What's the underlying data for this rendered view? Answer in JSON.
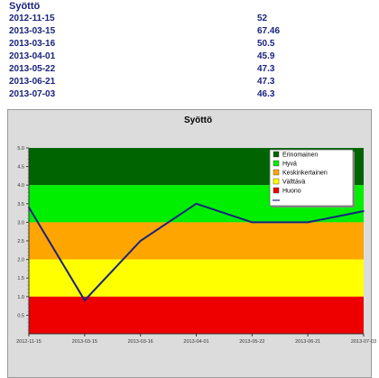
{
  "table": {
    "title": "Syöttö",
    "rows": [
      {
        "date": "2012-11-15",
        "value": "52"
      },
      {
        "date": "2013-03-15",
        "value": "67.46"
      },
      {
        "date": "2013-03-16",
        "value": "50.5"
      },
      {
        "date": "2013-04-01",
        "value": "45.9"
      },
      {
        "date": "2013-05-22",
        "value": "47.3"
      },
      {
        "date": "2013-06-21",
        "value": "47.3"
      },
      {
        "date": "2013-07-03",
        "value": "46.3"
      }
    ]
  },
  "chart_data": {
    "type": "line",
    "title": "Syöttö",
    "xlabel": "",
    "ylabel": "",
    "ylim": [
      0,
      5
    ],
    "y_ticks": [
      "0.5",
      "1.0",
      "1.5",
      "2.0",
      "2.5",
      "3.0",
      "3.5",
      "4.0",
      "4.5",
      "5.0"
    ],
    "categories": [
      "2012-11-15",
      "2013-03-15",
      "2013-03-16",
      "2013-04-01",
      "2013-05-22",
      "2013-06-21",
      "2013-07-03"
    ],
    "series": [
      {
        "name": "",
        "values": [
          3.4,
          0.9,
          2.5,
          3.5,
          3.0,
          3.0,
          3.3
        ],
        "color": "#1a237e"
      }
    ],
    "bands": [
      {
        "label": "Erinomainen",
        "from": 4,
        "to": 5,
        "color": "#006400"
      },
      {
        "label": "Hyvä",
        "from": 3,
        "to": 4,
        "color": "#00ee00"
      },
      {
        "label": "Keskinkertainen",
        "from": 2,
        "to": 3,
        "color": "#ffa500"
      },
      {
        "label": "Välttävä",
        "from": 1,
        "to": 2,
        "color": "#ffff00"
      },
      {
        "label": "Huono",
        "from": 0,
        "to": 1,
        "color": "#ee0000"
      }
    ],
    "legend_position": "top-right",
    "grid": false
  }
}
